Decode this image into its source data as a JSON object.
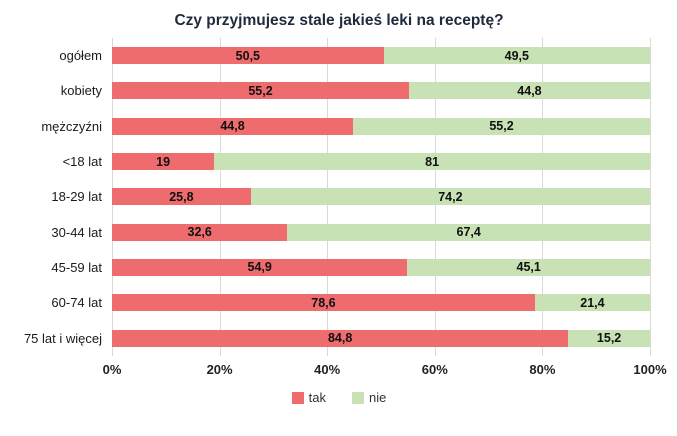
{
  "title": "Czy przyjmujesz stale jakieś leki na receptę?",
  "chart_data": {
    "type": "bar",
    "orientation": "horizontal-stacked",
    "title": "Czy przyjmujesz stale jakieś leki na receptę?",
    "categories": [
      "ogółem",
      "kobiety",
      "mężczyźni",
      "<18 lat",
      "18-29 lat",
      "30-44 lat",
      "45-59 lat",
      "60-74 lat",
      "75 lat i więcej"
    ],
    "series": [
      {
        "name": "tak",
        "color": "#ee6b6e",
        "values": [
          50.5,
          55.2,
          44.8,
          19,
          25.8,
          32.6,
          54.9,
          78.6,
          84.8
        ],
        "labels": [
          "50,5",
          "55,2",
          "44,8",
          "19",
          "25,8",
          "32,6",
          "54,9",
          "78,6",
          "84,8"
        ]
      },
      {
        "name": "nie",
        "color": "#c8e1b5",
        "values": [
          49.5,
          44.8,
          55.2,
          81,
          74.2,
          67.4,
          45.1,
          21.4,
          15.2
        ],
        "labels": [
          "49,5",
          "44,8",
          "55,2",
          "81",
          "74,2",
          "67,4",
          "45,1",
          "21,4",
          "15,2"
        ]
      }
    ],
    "x_ticks": [
      "0%",
      "20%",
      "40%",
      "60%",
      "80%",
      "100%"
    ],
    "xlim": [
      0,
      100
    ],
    "grid": true,
    "gridline_color": "#d9d9d9",
    "legend_position": "bottom"
  }
}
